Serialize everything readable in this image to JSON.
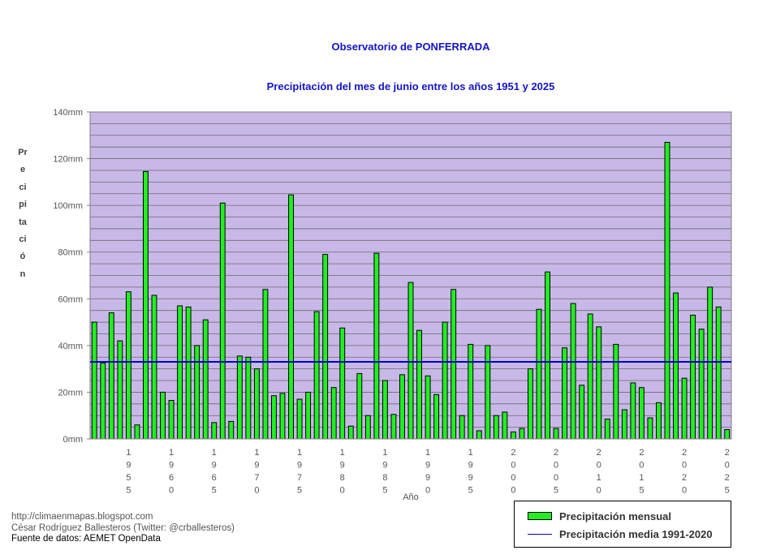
{
  "chart_data": {
    "type": "bar",
    "title": "Observatorio de PONFERRADA",
    "subtitle": "Precipitación del mes de junio entre los años 1951 y 2025",
    "xlabel": "Año",
    "ylabel": "Precipitación",
    "ylim": [
      0,
      140
    ],
    "y_unit": "mm",
    "y_ticks": [
      "0mm",
      "20mm",
      "40mm",
      "60mm",
      "80mm",
      "100mm",
      "120mm",
      "140mm"
    ],
    "x_tick_labels": [
      "1955",
      "1960",
      "1965",
      "1970",
      "1975",
      "1980",
      "1985",
      "1990",
      "1995",
      "2000",
      "2005",
      "2010",
      "2015",
      "2020",
      "2025"
    ],
    "categories": [
      1951,
      1952,
      1953,
      1954,
      1955,
      1956,
      1957,
      1958,
      1959,
      1960,
      1961,
      1962,
      1963,
      1964,
      1965,
      1966,
      1967,
      1968,
      1969,
      1970,
      1971,
      1972,
      1973,
      1974,
      1975,
      1976,
      1977,
      1978,
      1979,
      1980,
      1981,
      1982,
      1983,
      1984,
      1985,
      1986,
      1987,
      1988,
      1989,
      1990,
      1991,
      1992,
      1993,
      1994,
      1995,
      1996,
      1997,
      1998,
      1999,
      2000,
      2001,
      2002,
      2003,
      2004,
      2005,
      2006,
      2007,
      2008,
      2009,
      2010,
      2011,
      2012,
      2013,
      2014,
      2015,
      2016,
      2017,
      2018,
      2019,
      2020,
      2021,
      2022,
      2023,
      2024,
      2025
    ],
    "series": [
      {
        "name": "Precipitación mensual",
        "color": "#22ee22",
        "values": [
          50,
          32.5,
          54,
          42,
          63,
          6,
          114.5,
          61.5,
          20,
          16.5,
          57,
          56.5,
          40,
          51,
          7,
          101,
          7.5,
          35.5,
          35,
          30,
          64,
          18.5,
          19.5,
          104.5,
          17,
          20,
          54.5,
          79,
          22,
          47.5,
          5.5,
          28,
          10,
          79.5,
          25,
          10.5,
          27.5,
          67,
          46.5,
          27,
          19,
          50,
          64,
          10,
          40.5,
          3.5,
          40,
          10,
          11.5,
          3,
          4.5,
          30,
          55.5,
          71.5,
          4.5,
          39,
          58,
          23,
          53.5,
          48,
          8.5,
          40.5,
          12.5,
          24,
          22,
          9,
          15.5,
          127,
          62.5,
          26,
          53,
          47,
          65,
          56.5,
          4
        ]
      }
    ],
    "reference_line": {
      "name": "Precipitación media 1991-2020",
      "value": 33,
      "color": "#0000cc"
    },
    "plot_background": "#c8b8e8",
    "grid": true,
    "legend_position": "bottom-right"
  },
  "credits": {
    "blog": "http://climaenmapas.blogspot.com",
    "author": "César Rodríguez Ballesteros (Twitter: @crballesteros)",
    "source": "Fuente de datos: AEMET OpenData"
  }
}
